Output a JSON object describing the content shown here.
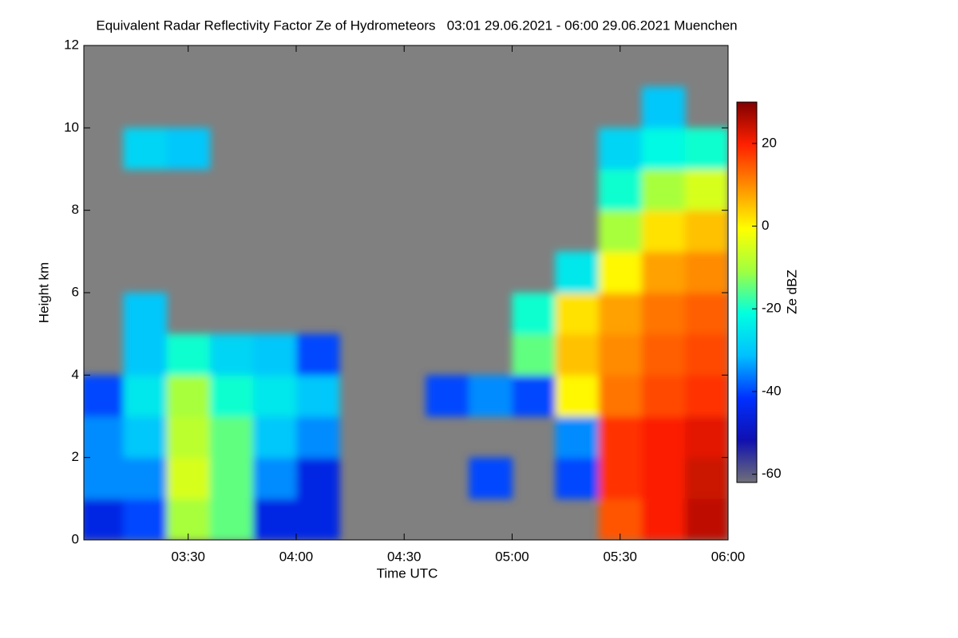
{
  "chart_data": {
    "type": "heatmap",
    "title": "Equivalent Radar Reflectivity Factor Ze of Hydrometeors   03:01 29.06.2021 - 06:00 29.06.2021 Muenchen",
    "x_label": "Time UTC",
    "y_label": "Height km",
    "colorbar_label": "Ze dBZ",
    "xlim": [
      3.0167,
      6.0
    ],
    "xticks": [
      {
        "value": 3.5,
        "label": "03:30"
      },
      {
        "value": 4.0,
        "label": "04:00"
      },
      {
        "value": 4.5,
        "label": "04:30"
      },
      {
        "value": 5.0,
        "label": "05:00"
      },
      {
        "value": 5.5,
        "label": "05:30"
      },
      {
        "value": 6.0,
        "label": "06:00"
      }
    ],
    "ylim": [
      0,
      12
    ],
    "yticks": [
      0,
      2,
      4,
      6,
      8,
      10,
      12
    ],
    "zlim": [
      -62,
      30
    ],
    "zticks": [
      20,
      0,
      -20,
      -40,
      -60
    ],
    "x_bins": [
      3.0,
      3.2,
      3.4,
      3.6,
      3.8,
      4.0,
      4.2,
      4.4,
      4.6,
      4.8,
      5.0,
      5.2,
      5.4,
      5.6,
      5.8,
      6.0
    ],
    "y_bins": [
      0,
      1,
      2,
      3,
      4,
      5,
      6,
      7,
      8,
      9,
      10,
      11,
      12
    ],
    "z": [
      [
        -45,
        -40,
        -10,
        -15,
        -45,
        -45,
        null,
        null,
        null,
        null,
        null,
        null,
        15,
        20,
        25
      ],
      [
        -35,
        -35,
        -5,
        -15,
        -35,
        -45,
        null,
        null,
        null,
        -40,
        null,
        -40,
        18,
        20,
        24
      ],
      [
        -35,
        -30,
        -8,
        -15,
        -30,
        -35,
        null,
        null,
        null,
        null,
        null,
        -35,
        18,
        20,
        22
      ],
      [
        -40,
        -25,
        -10,
        -20,
        -25,
        -30,
        null,
        null,
        -40,
        -35,
        -40,
        0,
        12,
        16,
        18
      ],
      [
        null,
        -30,
        -20,
        -28,
        -30,
        -40,
        null,
        null,
        null,
        null,
        -15,
        5,
        10,
        14,
        16
      ],
      [
        null,
        -30,
        null,
        null,
        null,
        null,
        null,
        null,
        null,
        null,
        -20,
        2,
        8,
        12,
        14
      ],
      [
        null,
        null,
        null,
        null,
        null,
        null,
        null,
        null,
        null,
        null,
        null,
        -25,
        0,
        8,
        10
      ],
      [
        null,
        null,
        null,
        null,
        null,
        null,
        null,
        null,
        null,
        null,
        null,
        null,
        -10,
        2,
        5
      ],
      [
        null,
        null,
        null,
        null,
        null,
        null,
        null,
        null,
        null,
        null,
        null,
        null,
        -20,
        -10,
        -5
      ],
      [
        null,
        -28,
        -30,
        null,
        null,
        null,
        null,
        null,
        null,
        null,
        null,
        null,
        -28,
        -22,
        -20
      ],
      [
        null,
        null,
        null,
        null,
        null,
        null,
        null,
        null,
        null,
        null,
        null,
        null,
        null,
        -30,
        null
      ],
      [
        null,
        null,
        null,
        null,
        null,
        null,
        null,
        null,
        null,
        null,
        null,
        null,
        null,
        null,
        null
      ]
    ],
    "background_color": "#808080",
    "colorscale": [
      "#707078",
      "#1010b0",
      "#0030ff",
      "#00c0ff",
      "#00ffe0",
      "#a0ff40",
      "#ffff00",
      "#ff9000",
      "#ff2000",
      "#800000"
    ]
  }
}
